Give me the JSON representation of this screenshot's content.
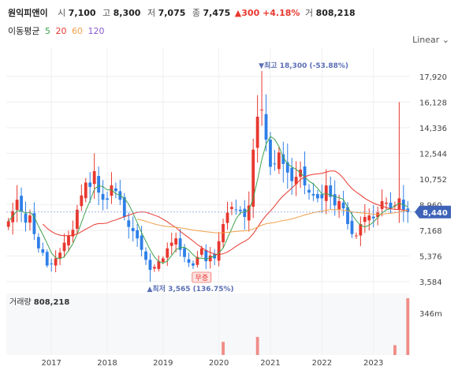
{
  "header": {
    "name": "원익피앤이",
    "open_label": "시",
    "open": "7,100",
    "high_label": "고",
    "high": "8,300",
    "low_label": "저",
    "low": "7,075",
    "close_label": "종",
    "close": "7,475",
    "change": "▲300 +4.18%",
    "volume_label": "거",
    "volume": "808,218"
  },
  "ma_legend": {
    "title": "이동평균",
    "items": [
      {
        "label": "5",
        "color": "#3fa34d"
      },
      {
        "label": "20",
        "color": "#e8382f"
      },
      {
        "label": "60",
        "color": "#f0a04b"
      },
      {
        "label": "120",
        "color": "#8a5cd0"
      }
    ]
  },
  "scale_button": "Linear",
  "chart_data": {
    "type": "candlestick",
    "y_ticks": [
      "17,920",
      "16,128",
      "14,336",
      "12,544",
      "10,752",
      "8,960",
      "7,168",
      "5,376",
      "3,584"
    ],
    "y_tick_values": [
      17920,
      16128,
      14336,
      12544,
      10752,
      8960,
      7168,
      5376,
      3584
    ],
    "ylim": [
      3300,
      19400
    ],
    "x_ticks": [
      "2017",
      "2018",
      "2019",
      "2020",
      "2021",
      "2022",
      "2023"
    ],
    "x_tick_index": [
      10,
      23,
      36,
      49,
      61,
      73,
      85
    ],
    "n_candles": 94,
    "current_price_label": "8,440",
    "current_price": 8440,
    "max_annotation": "▼최고 18,300 (-53.88%)",
    "max_value": 18300,
    "max_index": 59,
    "min_annotation": "▲최저 3,565 (136.75%)",
    "min_value": 3565,
    "min_index": 33,
    "event_badge": "무증",
    "event_index": 45,
    "closes": [
      7800,
      8500,
      9300,
      8500,
      7700,
      8200,
      6900,
      5900,
      5600,
      4700,
      4800,
      5200,
      5600,
      6300,
      6800,
      7200,
      8600,
      9600,
      10500,
      10200,
      11300,
      9800,
      9300,
      9300,
      10300,
      9900,
      9300,
      8100,
      7400,
      7100,
      6600,
      5800,
      5100,
      4400,
      4600,
      5000,
      5200,
      5900,
      6300,
      6600,
      5800,
      5300,
      4900,
      4700,
      5300,
      5900,
      5000,
      5400,
      5200,
      6400,
      7600,
      8400,
      8800,
      8600,
      8500,
      8100,
      8900,
      12800,
      15100,
      15600,
      13500,
      11600,
      11800,
      12600,
      11800,
      11200,
      10600,
      10900,
      11400,
      10300,
      9800,
      9600,
      9400,
      9400,
      10300,
      9500,
      8900,
      9200,
      8700,
      7600,
      6900,
      6800,
      7600,
      8100,
      8200,
      8000,
      8400,
      9200,
      9100,
      8700,
      8900,
      9400,
      8600,
      8440
    ],
    "volume_axis_label": "346m",
    "volume_title": "거래량",
    "volume_value": "808,218",
    "volume_spikes": [
      {
        "index": 50,
        "value": 80
      },
      {
        "index": 58,
        "value": 110
      },
      {
        "index": 90,
        "value": 60
      },
      {
        "index": 93,
        "value": 346
      }
    ],
    "grid": true
  }
}
